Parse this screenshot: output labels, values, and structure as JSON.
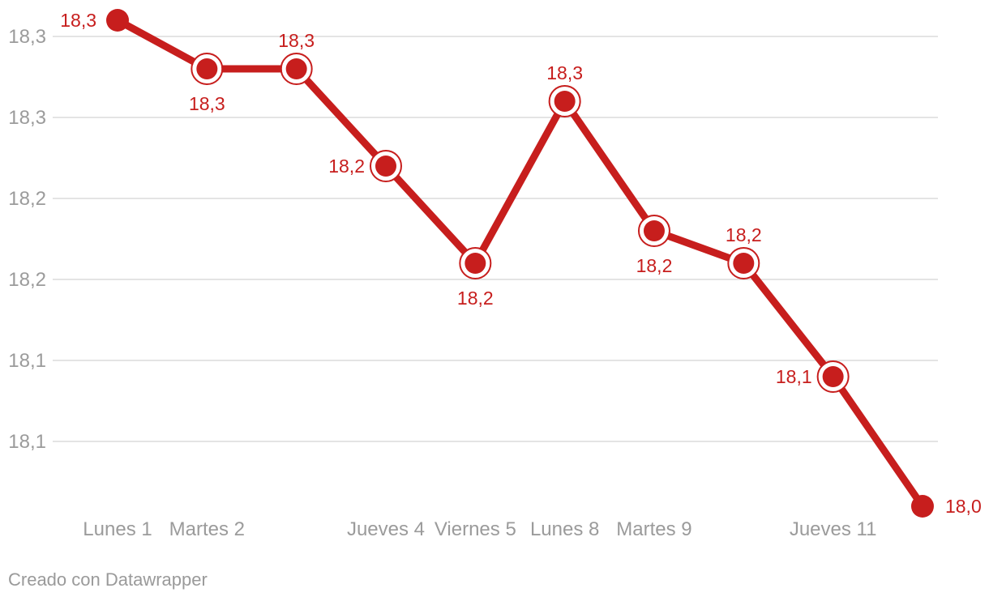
{
  "page": {
    "background": "#ffffff"
  },
  "colors": {
    "line": "#c71e1d",
    "marker": "#c71e1d",
    "data_label": "#c71e1d",
    "grid": "#dcdcdc",
    "tick_text": "#9b9b9b",
    "footer_text": "#9a9a9a",
    "background": "#ffffff"
  },
  "footer": {
    "attribution": "Creado con Datawrapper"
  },
  "chart_data": {
    "type": "line",
    "title": "",
    "xlabel": "",
    "ylabel": "",
    "legend": "none",
    "grid": "horizontal",
    "ylim": [
      18.0,
      18.33
    ],
    "categories": [
      "Lunes 1",
      "Martes 2",
      "",
      "Jueves 4",
      "Viernes 5",
      "Lunes 8",
      "Martes 9",
      "",
      "Jueves 11",
      ""
    ],
    "values": [
      18.31,
      18.28,
      18.28,
      18.22,
      18.16,
      18.26,
      18.18,
      18.16,
      18.09,
      18.01
    ],
    "data_labels": [
      "18,3",
      "18,3",
      "18,3",
      "18,2",
      "18,2",
      "18,3",
      "18,2",
      "18,2",
      "18,1",
      "18,0"
    ],
    "data_label_positions": [
      "left",
      "below",
      "above",
      "left",
      "below",
      "above",
      "below",
      "above",
      "left",
      "right"
    ],
    "y_ticks": {
      "values": [
        18.3,
        18.25,
        18.2,
        18.15,
        18.1,
        18.05
      ],
      "labels": [
        "18,3",
        "18,3",
        "18,2",
        "18,2",
        "18,1",
        "18,1"
      ]
    },
    "visible_x_tick_labels": [
      "Lunes 1",
      "Martes 2",
      "Jueves 4",
      "Viernes 5",
      "Lunes 8",
      "Martes 9",
      "Jueves 11"
    ]
  }
}
